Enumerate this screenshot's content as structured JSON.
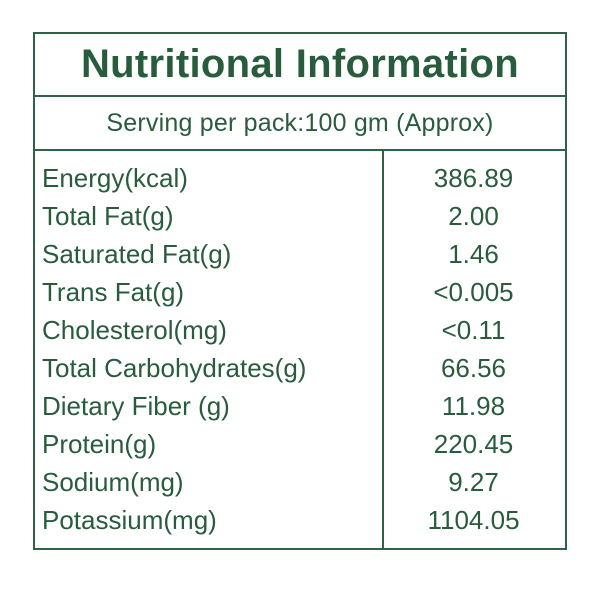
{
  "title": "Nutritional Information",
  "serving_info": "Serving per pack:100 gm (Approx)",
  "colors": {
    "text": "#295c3d",
    "border": "#2f6247",
    "background": "#ffffff"
  },
  "table": {
    "rows": [
      {
        "label": "Energy(kcal)",
        "value": "386.89"
      },
      {
        "label": "Total Fat(g)",
        "value": "2.00"
      },
      {
        "label": "Saturated Fat(g)",
        "value": "1.46"
      },
      {
        "label": "Trans Fat(g)",
        "value": "<0.005"
      },
      {
        "label": "Cholesterol(mg)",
        "value": "<0.11"
      },
      {
        "label": "Total Carbohydrates(g)",
        "value": "66.56"
      },
      {
        "label": "Dietary Fiber (g)",
        "value": "11.98"
      },
      {
        "label": "Protein(g)",
        "value": "220.45"
      },
      {
        "label": "Sodium(mg)",
        "value": "9.27"
      },
      {
        "label": "Potassium(mg)",
        "value": "1104.05"
      }
    ]
  }
}
